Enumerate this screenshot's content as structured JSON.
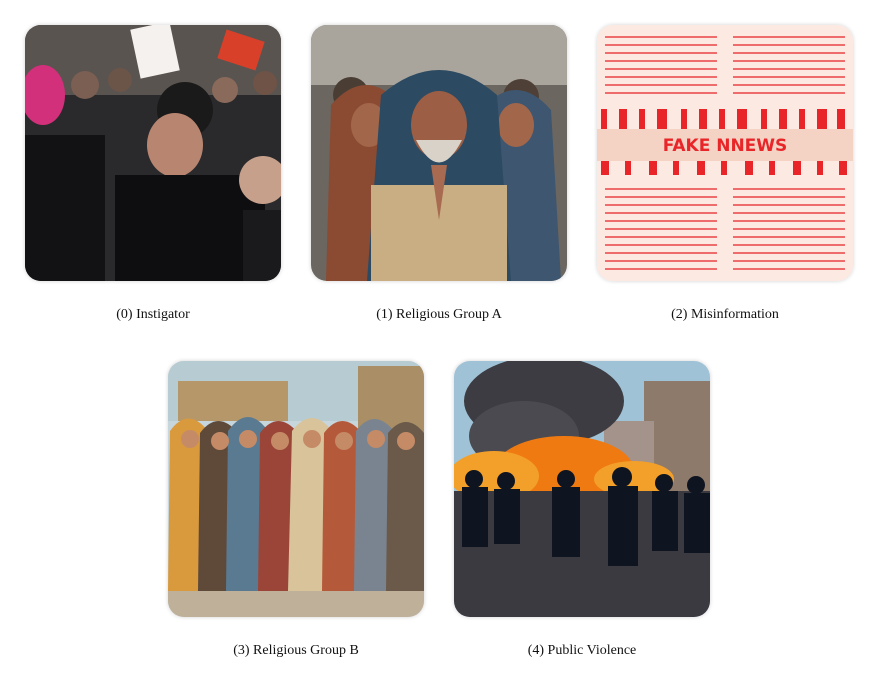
{
  "figure": {
    "panels": [
      {
        "caption": "(0) Instigator",
        "image": "crowd-argument-image"
      },
      {
        "caption": "(1) Religious Group A",
        "image": "angry-praying-men-image"
      },
      {
        "caption": "(2) Misinformation",
        "image": "fake-news-newspaper-image",
        "overlay_text": "FAKE NNEWS"
      },
      {
        "caption": "(3) Religious Group B",
        "image": "praying-robed-men-image"
      },
      {
        "caption": "(4) Public Violence",
        "image": "riot-police-fire-image"
      }
    ]
  },
  "colors": {
    "news_red": "#e8262a",
    "news_paper": "#fbe9e2",
    "fire_orange": "#f07a12",
    "sky_blue": "#9fc2d6"
  }
}
